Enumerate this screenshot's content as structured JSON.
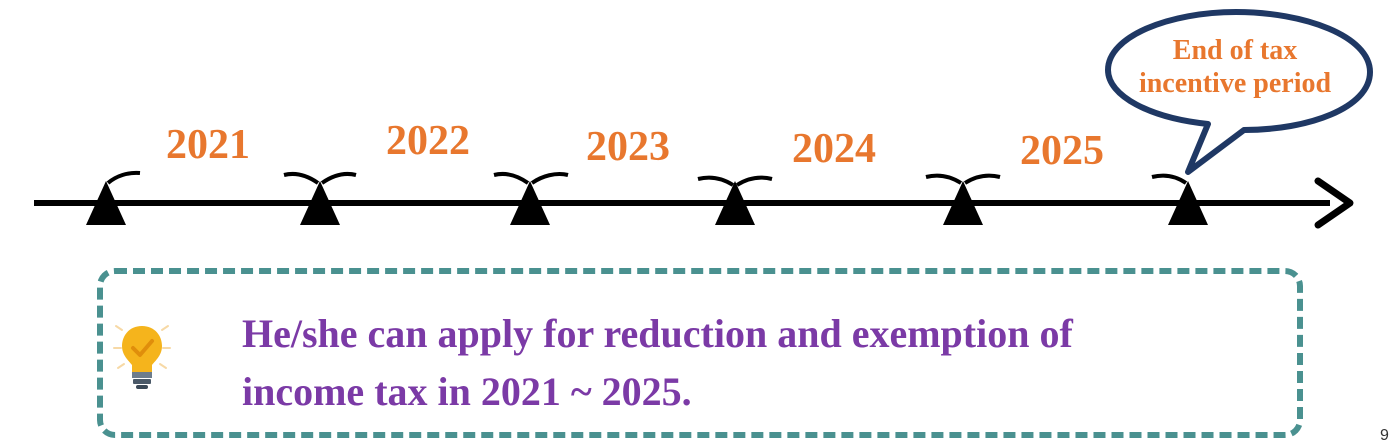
{
  "timeline": {
    "years": [
      "2021",
      "2022",
      "2023",
      "2024",
      "2025"
    ]
  },
  "callout": {
    "line1": "End of tax",
    "line2": "incentive period"
  },
  "note": {
    "line1": "He/she can apply for reduction and exemption of",
    "line2": "income tax in 2021 ~ 2025."
  },
  "page_number": "9",
  "colors": {
    "year_text": "#e8772e",
    "note_text": "#7b3aa6",
    "note_border": "#4a9190",
    "bubble_border": "#1f3864",
    "bulb": "#f5b41c"
  },
  "icons": {
    "note": "lightbulb-check-icon"
  }
}
